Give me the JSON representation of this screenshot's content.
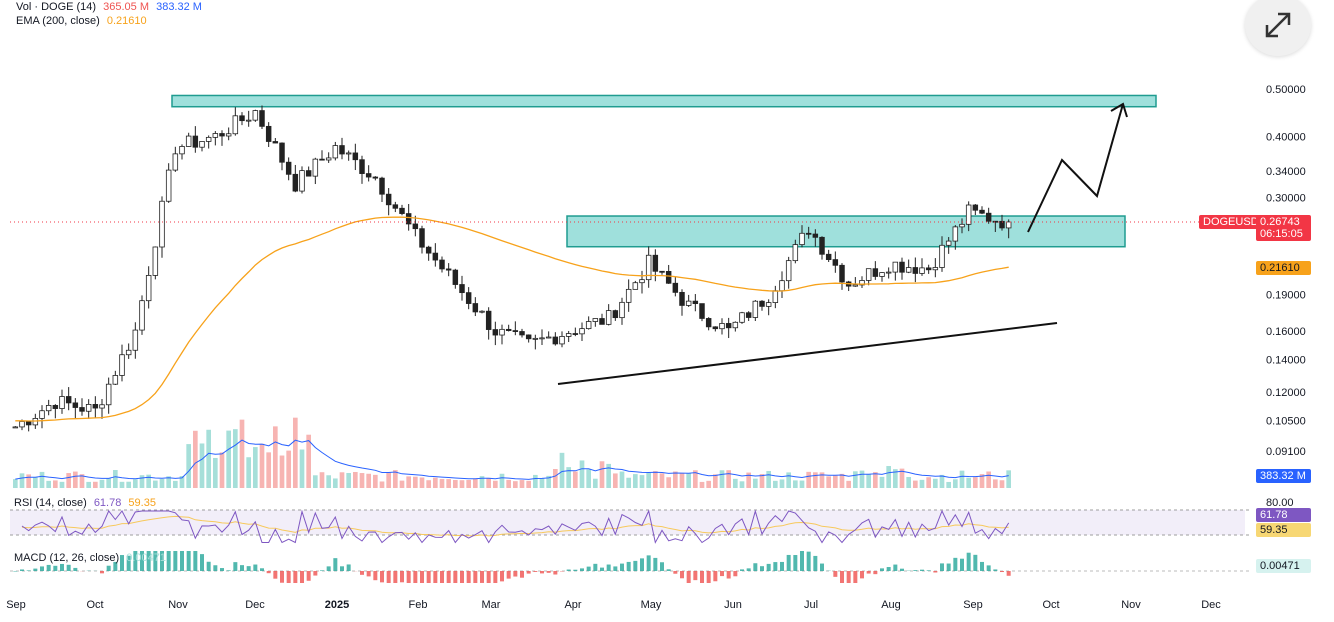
{
  "legend": {
    "vol": {
      "label": "Vol · DOGE (14)",
      "v1": "365.05 M",
      "v2": "383.32 M"
    },
    "ema": {
      "label": "EMA (200, close)",
      "value": "0.21610"
    }
  },
  "price_axis": {
    "ticks": [
      "0.50000",
      "0.40000",
      "0.34000",
      "0.30000",
      "0.19000",
      "0.16000",
      "0.14000",
      "0.12000",
      "0.10500",
      "0.09100"
    ],
    "ticks_partial": [
      "000"
    ]
  },
  "price_tags": {
    "symbol": "DOGEUSD",
    "price": "0.26743",
    "countdown": "06:15:05",
    "ema": "0.21610",
    "volume": "383.32 M"
  },
  "rsi": {
    "label": "RSI (14, close)",
    "value": "61.78",
    "ma": "59.35",
    "level": "80.00"
  },
  "macd": {
    "label": "MACD (12, 26, close)",
    "value": "0.00471"
  },
  "time_axis": [
    "Sep",
    "Oct",
    "Nov",
    "Dec",
    "2025",
    "Feb",
    "Mar",
    "Apr",
    "May",
    "Jun",
    "Jul",
    "Aug",
    "Sep",
    "Oct",
    "Nov",
    "Dec"
  ],
  "colors": {
    "up": "#26a69a",
    "down": "#ef5350",
    "ema": "#f7a21b",
    "volume_ma": "#2962ff",
    "rsi": "#7e57c2",
    "zone": "#7fd6d0",
    "current": "#f23645"
  },
  "chart_data": {
    "type": "candlestick",
    "symbol": "DOGEUSD",
    "scale": "log",
    "x": [
      "Sep",
      "Oct",
      "Nov",
      "Dec",
      "2025",
      "Feb",
      "Mar",
      "Apr",
      "May",
      "Jun",
      "Jul",
      "Aug",
      "Sep",
      "Oct",
      "Nov",
      "Dec"
    ],
    "ylim": [
      0.085,
      0.56
    ],
    "close_path": [
      {
        "x": "Sep",
        "y": 0.102
      },
      {
        "x": "Oct",
        "y": 0.115
      },
      {
        "x": "Oct",
        "y": 0.11
      },
      {
        "x": "Nov",
        "y": 0.16
      },
      {
        "x": "Nov",
        "y": 0.38
      },
      {
        "x": "Dec",
        "y": 0.4
      },
      {
        "x": "Dec",
        "y": 0.45
      },
      {
        "x": "Dec",
        "y": 0.32
      },
      {
        "x": "2025",
        "y": 0.38
      },
      {
        "x": "2025",
        "y": 0.33
      },
      {
        "x": "Feb",
        "y": 0.25
      },
      {
        "x": "Mar",
        "y": 0.2
      },
      {
        "x": "Mar",
        "y": 0.16
      },
      {
        "x": "Apr",
        "y": 0.15
      },
      {
        "x": "Apr",
        "y": 0.16
      },
      {
        "x": "May",
        "y": 0.17
      },
      {
        "x": "May",
        "y": 0.22
      },
      {
        "x": "Jun",
        "y": 0.18
      },
      {
        "x": "Jun",
        "y": 0.16
      },
      {
        "x": "Jul",
        "y": 0.19
      },
      {
        "x": "Jul",
        "y": 0.26
      },
      {
        "x": "Aug",
        "y": 0.2
      },
      {
        "x": "Aug",
        "y": 0.22
      },
      {
        "x": "Sep",
        "y": 0.215
      },
      {
        "x": "Sep",
        "y": 0.28
      },
      {
        "x": "Sep",
        "y": 0.267
      }
    ],
    "ema200": {
      "name": "EMA (200, close)",
      "last": 0.2161
    },
    "last_price": 0.26743,
    "zones": [
      {
        "from": 0.46,
        "to": 0.485
      },
      {
        "from": 0.238,
        "to": 0.275
      }
    ],
    "grid": false
  }
}
